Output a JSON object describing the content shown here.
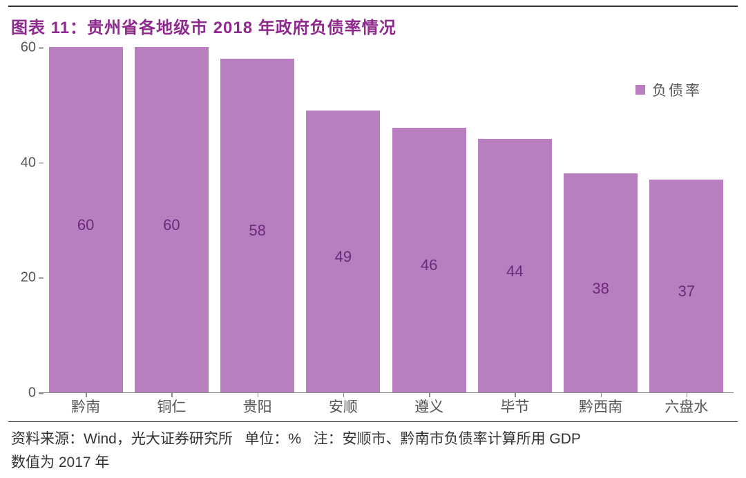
{
  "title": "图表 11：贵州省各地级市 2018 年政府负债率情况",
  "chart": {
    "type": "bar",
    "categories": [
      "黔南",
      "铜仁",
      "贵阳",
      "安顺",
      "遵义",
      "毕节",
      "黔西南",
      "六盘水"
    ],
    "values": [
      60,
      60,
      58,
      49,
      46,
      44,
      38,
      37
    ],
    "bar_color": "#b97ec0",
    "bar_value_color": "#6a2a7a",
    "ylim": [
      0,
      60
    ],
    "ytick_step": 20,
    "ytick_labels": [
      "0",
      "20",
      "40",
      "60"
    ],
    "ytick_color": "#555555",
    "xtick_color": "#555555",
    "axis_color": "#888888",
    "background_color": "#ffffff",
    "bar_width_ratio": 0.86,
    "value_fontsize": 22,
    "tick_fontsize": 20,
    "xlabel_fontsize": 21
  },
  "legend": {
    "label": "负债率",
    "swatch_color": "#b97ec0",
    "label_color": "#555555",
    "label_fontsize": 21
  },
  "footer": {
    "line1_prefix": "资料来源：",
    "source": "Wind，光大证券研究所",
    "unit_prefix": "单位：",
    "unit": "%",
    "note_prefix": "注：",
    "note": "安顺市、黔南市负债率计算所用 GDP",
    "line2": "数值为 2017 年"
  },
  "colors": {
    "title_color": "#8e2a8e",
    "rule_color": "#333333"
  }
}
